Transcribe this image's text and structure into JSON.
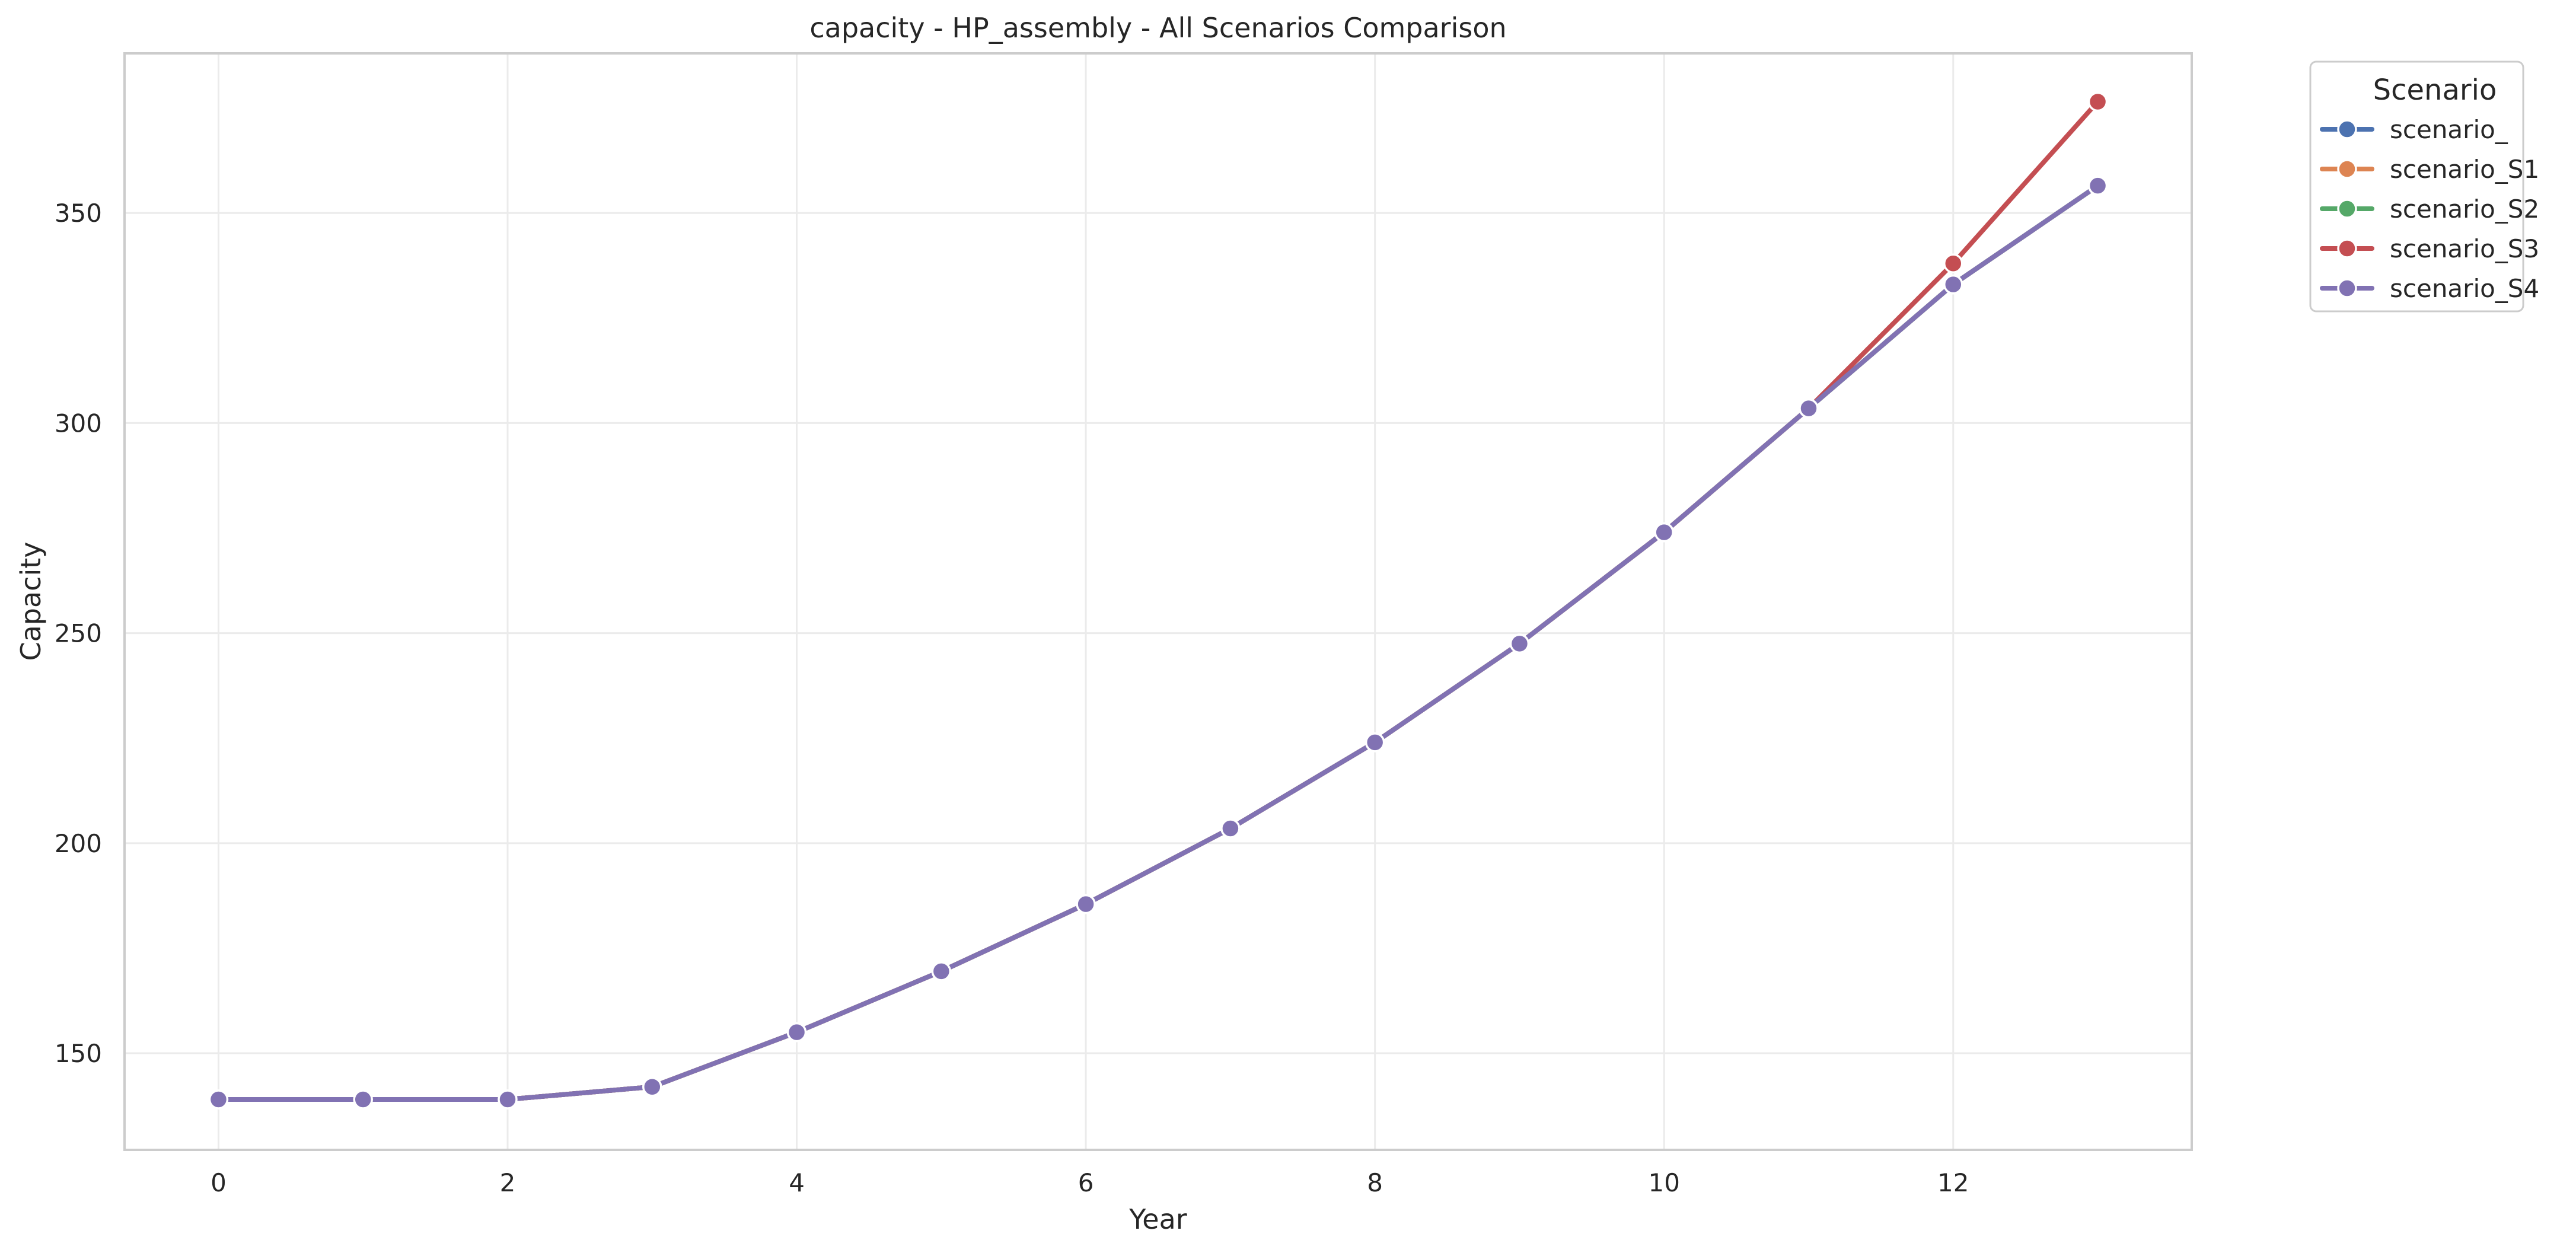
{
  "chart_data": {
    "type": "line",
    "title": "capacity - HP_assembly - All Scenarios Comparison",
    "xlabel": "Year",
    "ylabel": "Capacity",
    "xlim": [
      -0.65,
      13.65
    ],
    "ylim": [
      127,
      388
    ],
    "x_ticks": [
      0,
      2,
      4,
      6,
      8,
      10,
      12
    ],
    "y_ticks": [
      150,
      200,
      250,
      300,
      350
    ],
    "grid": true,
    "legend": {
      "title": "Scenario",
      "placement": "outside-top-right"
    },
    "x": [
      0,
      1,
      2,
      3,
      4,
      5,
      6,
      7,
      8,
      9,
      10,
      11,
      12,
      13
    ],
    "series": [
      {
        "name": "scenario_",
        "color": "#4c72b0",
        "values": [
          139,
          139,
          139,
          142,
          155,
          169.5,
          185.5,
          203.5,
          224,
          247.5,
          274,
          303.5,
          333,
          356.5
        ]
      },
      {
        "name": "scenario_S1",
        "color": "#dd8452",
        "values": [
          139,
          139,
          139,
          142,
          155,
          169.5,
          185.5,
          203.5,
          224,
          247.5,
          274,
          303.5,
          333,
          356.5
        ]
      },
      {
        "name": "scenario_S2",
        "color": "#55a868",
        "values": [
          139,
          139,
          139,
          142,
          155,
          169.5,
          185.5,
          203.5,
          224,
          247.5,
          274,
          303.5,
          333,
          356.5
        ]
      },
      {
        "name": "scenario_S3",
        "color": "#c44e52",
        "values": [
          139,
          139,
          139,
          142,
          155,
          169.5,
          185.5,
          203.5,
          224,
          247.5,
          274,
          303.5,
          338,
          376.5
        ]
      },
      {
        "name": "scenario_S4",
        "color": "#8172b3",
        "values": [
          139,
          139,
          139,
          142,
          155,
          169.5,
          185.5,
          203.5,
          224,
          247.5,
          274,
          303.5,
          333,
          356.5
        ]
      }
    ]
  }
}
